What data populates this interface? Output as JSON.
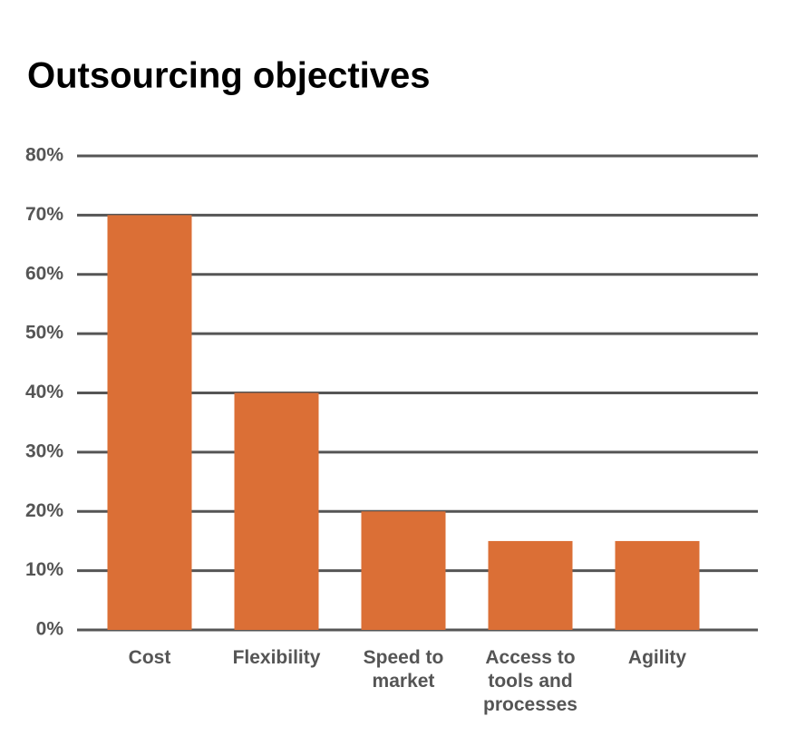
{
  "chart_data": {
    "type": "bar",
    "title": "Outsourcing objectives",
    "categories": [
      "Cost",
      "Flexibility",
      "Speed to market",
      "Access to tools and processes",
      "Agility"
    ],
    "values": [
      70,
      40,
      20,
      15,
      15
    ],
    "color": "#db6f36",
    "ylim": [
      0,
      80
    ],
    "yticks": [
      {
        "value": 0,
        "label": "0%"
      },
      {
        "value": 10,
        "label": "10%"
      },
      {
        "value": 20,
        "label": "20%"
      },
      {
        "value": 30,
        "label": "30%"
      },
      {
        "value": 40,
        "label": "40%"
      },
      {
        "value": 50,
        "label": "50%"
      },
      {
        "value": 60,
        "label": "60%"
      },
      {
        "value": 70,
        "label": "70%"
      },
      {
        "value": 80,
        "label": "80%"
      }
    ],
    "grid": true
  }
}
